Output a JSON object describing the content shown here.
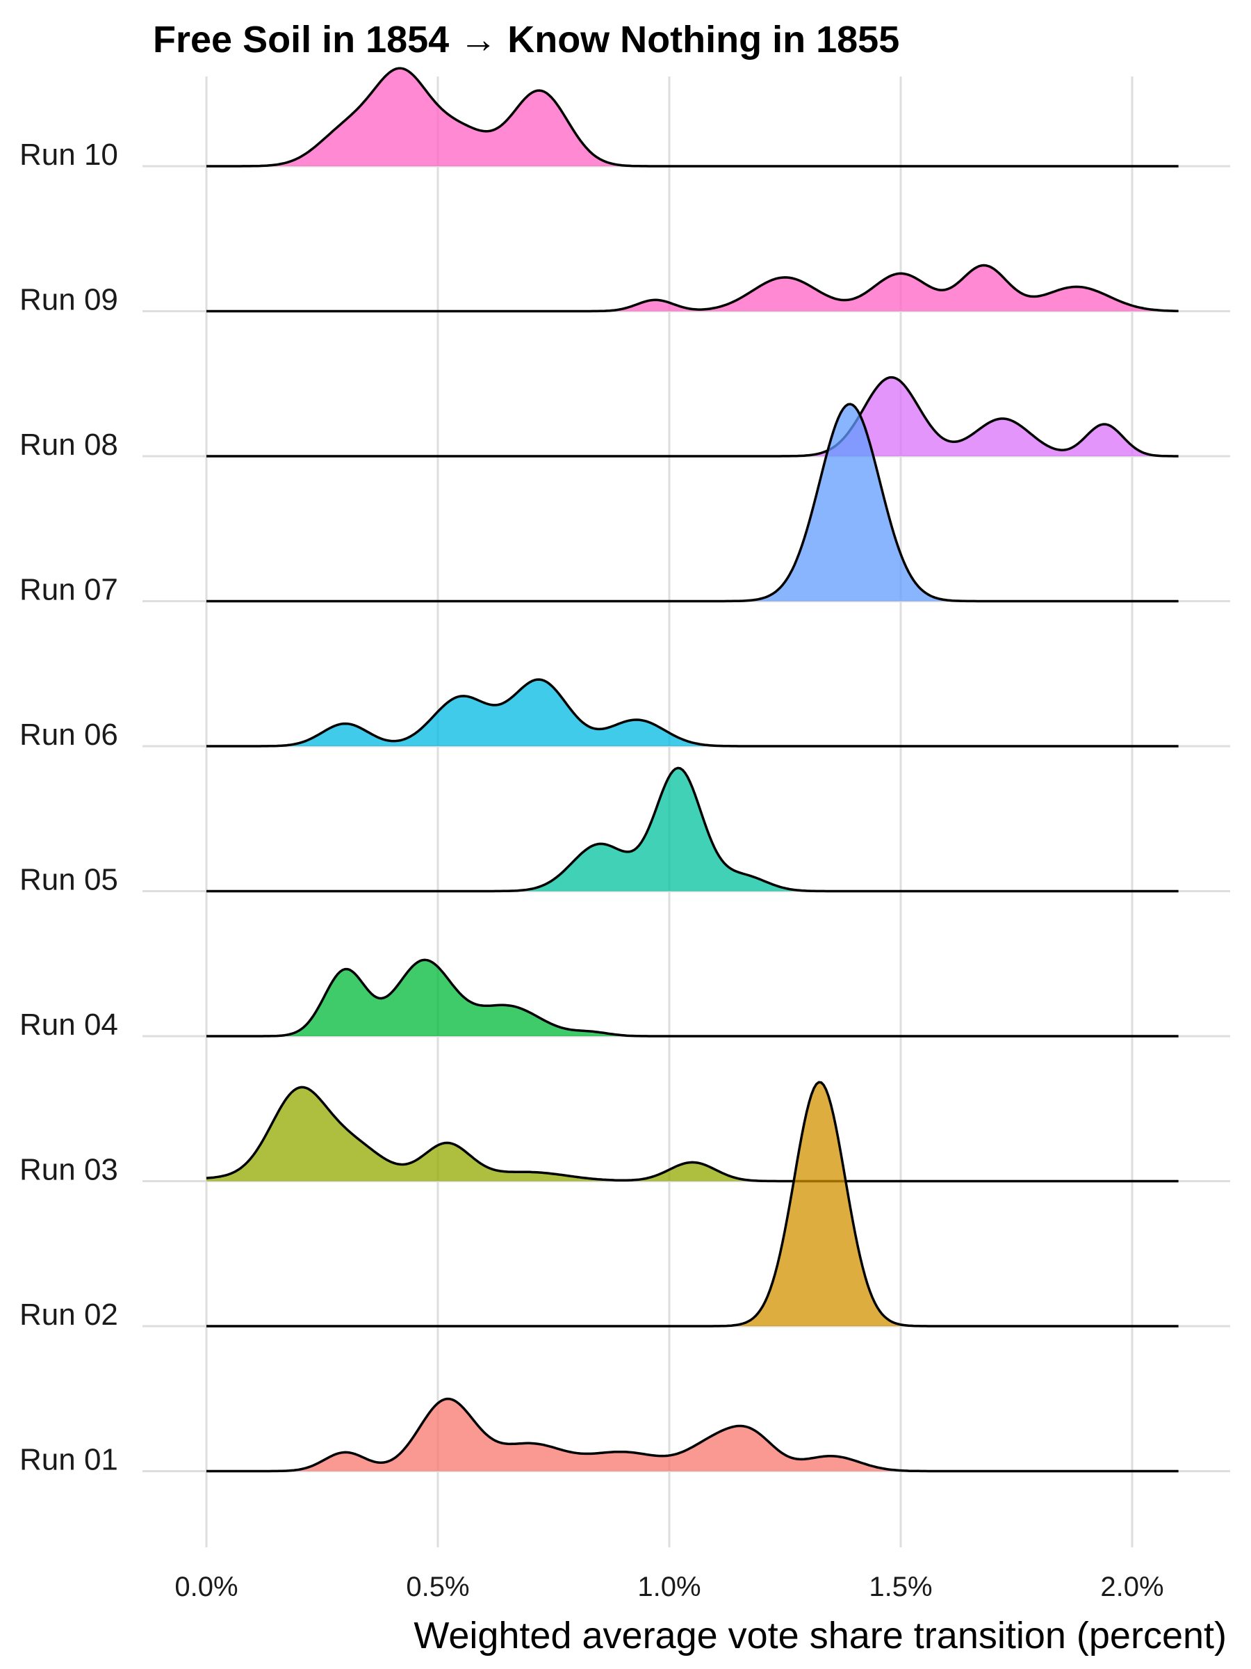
{
  "chart_data": {
    "type": "ridgeline",
    "title": "Free Soil in 1854 → Know Nothing in 1855",
    "xlabel": "Weighted average vote share transition (percent)",
    "ylabel": "",
    "xlim": [
      -0.001,
      0.022
    ],
    "x_range_plotted": [
      0.0,
      0.021
    ],
    "x_ticks": [
      0.0,
      0.005,
      0.01,
      0.015,
      0.02
    ],
    "x_tick_labels": [
      "0.0%",
      "0.5%",
      "1.0%",
      "1.5%",
      "2.0%"
    ],
    "grid": true,
    "legend": "none",
    "series": [
      {
        "name": "Run 01",
        "color": "#F8766D",
        "peaks": [
          [
            0.003,
            0.00045,
            0.1
          ],
          [
            0.0052,
            0.0006,
            0.38
          ],
          [
            0.007,
            0.0007,
            0.14
          ],
          [
            0.009,
            0.0008,
            0.1
          ],
          [
            0.011,
            0.0006,
            0.15
          ],
          [
            0.0118,
            0.0005,
            0.16
          ],
          [
            0.0135,
            0.0006,
            0.08
          ]
        ]
      },
      {
        "name": "Run 02",
        "color": "#D39200",
        "peaks": [
          [
            0.01325,
            0.00055,
            1.3
          ]
        ]
      },
      {
        "name": "Run 03",
        "color": "#93AA00",
        "peaks": [
          [
            0.002,
            0.0006,
            0.45
          ],
          [
            0.0032,
            0.0006,
            0.15
          ],
          [
            0.0052,
            0.0005,
            0.18
          ],
          [
            0.007,
            0.0008,
            0.04
          ],
          [
            0.0105,
            0.0005,
            0.1
          ],
          [
            0.003,
            0.0025,
            0.03
          ]
        ]
      },
      {
        "name": "Run 04",
        "color": "#00BA38",
        "peaks": [
          [
            0.003,
            0.00045,
            0.35
          ],
          [
            0.0047,
            0.0006,
            0.4
          ],
          [
            0.0065,
            0.0007,
            0.16
          ],
          [
            0.0083,
            0.0004,
            0.02
          ]
        ]
      },
      {
        "name": "Run 05",
        "color": "#00C19F",
        "peaks": [
          [
            0.0085,
            0.0006,
            0.25
          ],
          [
            0.0102,
            0.0005,
            0.65
          ],
          [
            0.0116,
            0.0005,
            0.08
          ]
        ]
      },
      {
        "name": "Run 06",
        "color": "#00B9E3",
        "peaks": [
          [
            0.003,
            0.0005,
            0.12
          ],
          [
            0.0055,
            0.0006,
            0.26
          ],
          [
            0.0072,
            0.0006,
            0.35
          ],
          [
            0.0093,
            0.0006,
            0.14
          ]
        ]
      },
      {
        "name": "Run 07",
        "color": "#619CFF",
        "peaks": [
          [
            0.0139,
            0.00065,
            1.05
          ]
        ]
      },
      {
        "name": "Run 08",
        "color": "#DB72FB",
        "peaks": [
          [
            0.0148,
            0.0006,
            0.42
          ],
          [
            0.0172,
            0.0006,
            0.2
          ],
          [
            0.0194,
            0.0004,
            0.17
          ]
        ]
      },
      {
        "name": "Run 09",
        "color": "#FF61C3",
        "peaks": [
          [
            0.0097,
            0.0004,
            0.06
          ],
          [
            0.0125,
            0.0007,
            0.18
          ],
          [
            0.015,
            0.0006,
            0.2
          ],
          [
            0.0168,
            0.0005,
            0.24
          ],
          [
            0.0188,
            0.0007,
            0.13
          ]
        ]
      },
      {
        "name": "Run 10",
        "color": "#FF61C3",
        "peaks": [
          [
            0.003,
            0.0006,
            0.18
          ],
          [
            0.0042,
            0.0006,
            0.48
          ],
          [
            0.0055,
            0.0006,
            0.18
          ],
          [
            0.0072,
            0.0006,
            0.4
          ]
        ]
      }
    ]
  }
}
